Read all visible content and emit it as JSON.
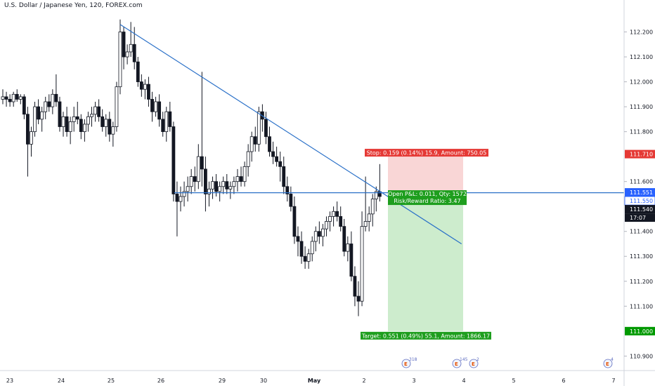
{
  "header": {
    "title": "U.S. Dollar / Japanese Yen, 120, FOREX.com"
  },
  "price_axis": {
    "ticks": [
      {
        "label": "112.200",
        "value": 112.2
      },
      {
        "label": "112.100",
        "value": 112.1
      },
      {
        "label": "112.000",
        "value": 112.0
      },
      {
        "label": "111.900",
        "value": 111.9
      },
      {
        "label": "111.800",
        "value": 111.8
      },
      {
        "label": "111.600",
        "value": 111.6
      },
      {
        "label": "111.400",
        "value": 111.4
      },
      {
        "label": "111.300",
        "value": 111.3
      },
      {
        "label": "111.200",
        "value": 111.2
      },
      {
        "label": "111.100",
        "value": 111.1
      },
      {
        "label": "110.900",
        "value": 110.9
      }
    ],
    "tags": [
      {
        "label": "111.710",
        "value": 111.71,
        "color": "#e53935"
      },
      {
        "label": "111.551",
        "value": 111.551,
        "color": "#2962ff"
      },
      {
        "label": "111.550",
        "value": 111.55,
        "color": "#ffffff",
        "text_color": "#2962ff",
        "border": true
      },
      {
        "label": "111.540",
        "value": 111.54,
        "color": "#131722"
      },
      {
        "label": "17:07",
        "value": 111.52,
        "color": "#131722",
        "countdown": true
      },
      {
        "label": "111.000",
        "value": 111.0,
        "color": "#009900"
      }
    ]
  },
  "time_axis": {
    "labels": [
      "23",
      "24",
      "25",
      "26",
      "29",
      "30",
      "May",
      "2",
      "3",
      "4",
      "5",
      "6",
      "7"
    ],
    "bold": [
      "May"
    ]
  },
  "position": {
    "stop_label": "Stop: 0.159 (0.14%) 15.9, Amount: 750.05",
    "open_label": "Open P&L: 0.011, Qty: 1572",
    "rr_label": "Risk/Reward Ratio: 3.47",
    "target_label": "Target: 0.551 (0.49%) 55.1, Amount: 1866.17",
    "entry": 111.551,
    "stop": 111.71,
    "target": 111.0,
    "colors": {
      "risk": "#f9d6d6",
      "reward": "#cdeccd",
      "stop_tag": "#e53935",
      "target_tag": "#1e9e1e"
    }
  },
  "events": [
    {
      "name": "earnings-icon",
      "badge": "318"
    },
    {
      "name": "earnings-icon",
      "badge": "145"
    },
    {
      "name": "dividend-icon",
      "badge": "2"
    },
    {
      "name": "earnings-icon",
      "badge": "4"
    }
  ],
  "colors": {
    "up": "#ffffff",
    "down": "#131722",
    "trendline": "#2a70c8"
  },
  "chart_data": {
    "type": "candlestick",
    "title": "U.S. Dollar / Japanese Yen, 120, FOREX.com",
    "y_range": [
      110.87,
      112.3
    ],
    "x_labels": [
      "23",
      "24",
      "25",
      "26",
      "29",
      "30",
      "May",
      "2",
      "3",
      "4",
      "5",
      "6",
      "7"
    ],
    "candles": [
      [
        111.93,
        111.97,
        111.91,
        111.94
      ],
      [
        111.94,
        111.96,
        111.9,
        111.93
      ],
      [
        111.93,
        111.95,
        111.9,
        111.92
      ],
      [
        111.92,
        111.96,
        111.9,
        111.95
      ],
      [
        111.95,
        111.97,
        111.92,
        111.93
      ],
      [
        111.93,
        111.95,
        111.91,
        111.94
      ],
      [
        111.94,
        111.95,
        111.85,
        111.87
      ],
      [
        111.87,
        111.9,
        111.62,
        111.75
      ],
      [
        111.75,
        111.82,
        111.7,
        111.8
      ],
      [
        111.8,
        111.92,
        111.78,
        111.9
      ],
      [
        111.9,
        111.93,
        111.83,
        111.85
      ],
      [
        111.85,
        111.9,
        111.8,
        111.88
      ],
      [
        111.88,
        111.94,
        111.85,
        111.92
      ],
      [
        111.92,
        111.95,
        111.88,
        111.9
      ],
      [
        111.9,
        111.97,
        111.87,
        111.95
      ],
      [
        111.95,
        112.03,
        111.9,
        111.92
      ],
      [
        111.92,
        111.94,
        111.8,
        111.82
      ],
      [
        111.82,
        111.88,
        111.78,
        111.86
      ],
      [
        111.86,
        111.9,
        111.78,
        111.8
      ],
      [
        111.8,
        111.86,
        111.75,
        111.84
      ],
      [
        111.84,
        111.9,
        111.8,
        111.86
      ],
      [
        111.86,
        111.92,
        111.83,
        111.85
      ],
      [
        111.85,
        111.87,
        111.77,
        111.8
      ],
      [
        111.8,
        111.85,
        111.76,
        111.83
      ],
      [
        111.83,
        111.88,
        111.8,
        111.86
      ],
      [
        111.86,
        111.9,
        111.82,
        111.87
      ],
      [
        111.87,
        111.92,
        111.84,
        111.9
      ],
      [
        111.9,
        111.93,
        111.84,
        111.86
      ],
      [
        111.86,
        111.89,
        111.8,
        111.82
      ],
      [
        111.82,
        111.87,
        111.78,
        111.85
      ],
      [
        111.85,
        111.88,
        111.76,
        111.79
      ],
      [
        111.79,
        111.84,
        111.74,
        111.82
      ],
      [
        111.82,
        112.0,
        111.8,
        111.98
      ],
      [
        111.98,
        112.25,
        111.95,
        112.2
      ],
      [
        112.2,
        112.22,
        112.05,
        112.1
      ],
      [
        112.1,
        112.15,
        112.07,
        112.12
      ],
      [
        112.12,
        112.24,
        112.1,
        112.15
      ],
      [
        112.15,
        112.22,
        112.05,
        112.08
      ],
      [
        112.08,
        112.1,
        111.98,
        112.0
      ],
      [
        112.0,
        112.03,
        111.94,
        111.97
      ],
      [
        111.97,
        112.01,
        111.93,
        111.99
      ],
      [
        111.99,
        112.02,
        111.9,
        111.93
      ],
      [
        111.93,
        111.96,
        111.84,
        111.88
      ],
      [
        111.88,
        111.94,
        111.86,
        111.92
      ],
      [
        111.92,
        111.95,
        111.82,
        111.85
      ],
      [
        111.85,
        111.88,
        111.78,
        111.8
      ],
      [
        111.8,
        111.9,
        111.76,
        111.88
      ],
      [
        111.88,
        111.92,
        111.8,
        111.82
      ],
      [
        111.82,
        111.84,
        111.52,
        111.55
      ],
      [
        111.55,
        111.6,
        111.38,
        111.52
      ],
      [
        111.52,
        111.58,
        111.48,
        111.54
      ],
      [
        111.54,
        111.6,
        111.5,
        111.56
      ],
      [
        111.56,
        111.62,
        111.52,
        111.58
      ],
      [
        111.58,
        111.65,
        111.55,
        111.62
      ],
      [
        111.62,
        111.66,
        111.56,
        111.6
      ],
      [
        111.6,
        111.75,
        111.57,
        111.7
      ],
      [
        111.7,
        112.04,
        111.58,
        111.65
      ],
      [
        111.65,
        111.7,
        111.48,
        111.55
      ],
      [
        111.55,
        111.6,
        111.5,
        111.57
      ],
      [
        111.57,
        111.62,
        111.53,
        111.6
      ],
      [
        111.6,
        111.63,
        111.54,
        111.56
      ],
      [
        111.56,
        111.6,
        111.52,
        111.58
      ],
      [
        111.58,
        111.62,
        111.55,
        111.6
      ],
      [
        111.6,
        111.63,
        111.55,
        111.57
      ],
      [
        111.57,
        111.6,
        111.53,
        111.58
      ],
      [
        111.58,
        111.62,
        111.55,
        111.6
      ],
      [
        111.6,
        111.65,
        111.56,
        111.62
      ],
      [
        111.62,
        111.66,
        111.58,
        111.6
      ],
      [
        111.6,
        111.68,
        111.58,
        111.66
      ],
      [
        111.66,
        111.75,
        111.62,
        111.72
      ],
      [
        111.72,
        111.8,
        111.68,
        111.78
      ],
      [
        111.78,
        111.82,
        111.72,
        111.75
      ],
      [
        111.75,
        111.9,
        111.72,
        111.88
      ],
      [
        111.88,
        111.91,
        111.8,
        111.85
      ],
      [
        111.85,
        111.88,
        111.75,
        111.78
      ],
      [
        111.78,
        111.82,
        111.7,
        111.72
      ],
      [
        111.72,
        111.76,
        111.67,
        111.7
      ],
      [
        111.7,
        111.74,
        111.66,
        111.68
      ],
      [
        111.68,
        111.72,
        111.6,
        111.66
      ],
      [
        111.66,
        111.7,
        111.55,
        111.58
      ],
      [
        111.58,
        111.62,
        111.52,
        111.55
      ],
      [
        111.55,
        111.58,
        111.48,
        111.5
      ],
      [
        111.5,
        111.54,
        111.35,
        111.38
      ],
      [
        111.38,
        111.42,
        111.3,
        111.36
      ],
      [
        111.36,
        111.4,
        111.27,
        111.3
      ],
      [
        111.3,
        111.34,
        111.25,
        111.28
      ],
      [
        111.28,
        111.33,
        111.25,
        111.31
      ],
      [
        111.31,
        111.38,
        111.28,
        111.36
      ],
      [
        111.36,
        111.42,
        111.32,
        111.4
      ],
      [
        111.4,
        111.44,
        111.35,
        111.38
      ],
      [
        111.38,
        111.43,
        111.34,
        111.41
      ],
      [
        111.41,
        111.46,
        111.38,
        111.44
      ],
      [
        111.44,
        111.48,
        111.4,
        111.46
      ],
      [
        111.46,
        111.5,
        111.42,
        111.48
      ],
      [
        111.48,
        111.52,
        111.44,
        111.46
      ],
      [
        111.46,
        111.5,
        111.4,
        111.42
      ],
      [
        111.42,
        111.45,
        111.3,
        111.32
      ],
      [
        111.32,
        111.38,
        111.28,
        111.35
      ],
      [
        111.35,
        111.4,
        111.2,
        111.22
      ],
      [
        111.22,
        111.26,
        111.1,
        111.14
      ],
      [
        111.14,
        111.2,
        111.06,
        111.12
      ],
      [
        111.12,
        111.48,
        111.1,
        111.42
      ],
      [
        111.42,
        111.62,
        111.4,
        111.44
      ],
      [
        111.44,
        111.5,
        111.4,
        111.47
      ],
      [
        111.47,
        111.55,
        111.42,
        111.53
      ],
      [
        111.53,
        111.58,
        111.48,
        111.56
      ],
      [
        111.56,
        111.67,
        111.52,
        111.54
      ]
    ],
    "trendlines": [
      {
        "from": [
          33,
          112.23
        ],
        "to": [
          129,
          111.35
        ]
      },
      {
        "from": [
          42,
          111.555
        ],
        "to": [
          170,
          111.555
        ]
      }
    ]
  }
}
